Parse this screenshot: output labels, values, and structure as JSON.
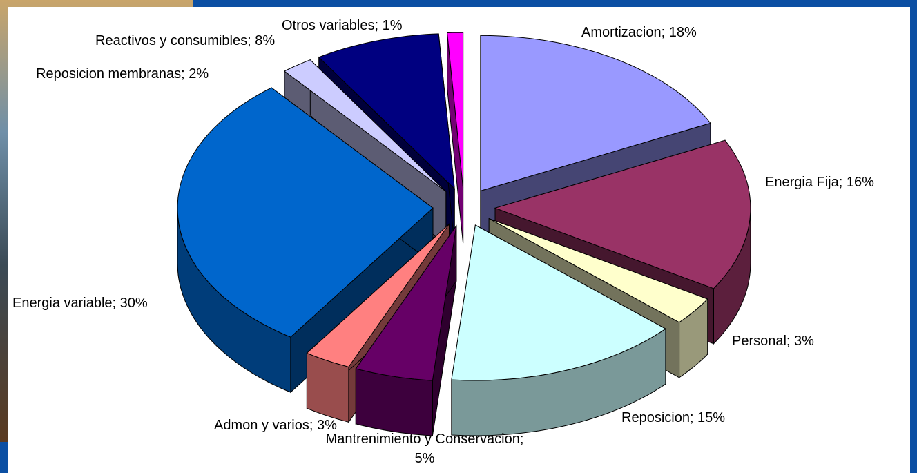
{
  "chart_data": {
    "type": "pie",
    "values": [
      18,
      16,
      3,
      15,
      5,
      3,
      30,
      2,
      8,
      1
    ],
    "value_labels": [
      "Amortizacion; 18%",
      "Energia Fija; 16%",
      "Personal; 3%",
      "Reposicion; 15%",
      "Mantrenimiento y Conservacion;\n5%",
      "Admon y varios; 3%",
      "Energia variable; 30%",
      "Reposicion membranas; 2%",
      "Reactivos y consumibles; 8%",
      "Otros variables; 1%"
    ],
    "colors": [
      "#9999ff",
      "#993366",
      "#ffffcc",
      "#ccffff",
      "#660066",
      "#ff8080",
      "#0066cc",
      "#ccccff",
      "#000080",
      "#ff00ff"
    ]
  }
}
